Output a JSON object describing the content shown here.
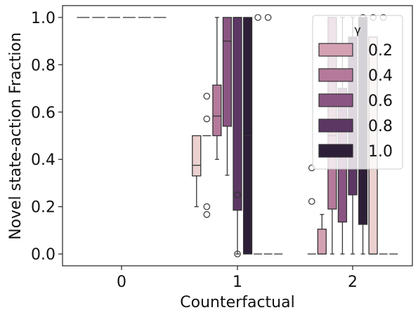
{
  "chart_data": {
    "type": "boxplot",
    "xlabel": "Counterfactual",
    "ylabel": "Novel state-action Fraction",
    "ylim": [
      -0.05,
      1.05
    ],
    "yticks": [
      "0.0",
      "0.2",
      "0.4",
      "0.6",
      "0.8",
      "1.0"
    ],
    "categories": [
      "0",
      "1",
      "2"
    ],
    "legend": {
      "title": "γ",
      "placement": "top-right",
      "entries": [
        "0.2",
        "0.4",
        "0.6",
        "0.8",
        "1.0"
      ]
    },
    "hue_colors": [
      "#ebd1cf",
      "#d4a1b3",
      "#b57a9b",
      "#8a5583",
      "#5c3764",
      "#2e1f38"
    ],
    "groups": [
      {
        "category": "0",
        "boxes": [
          {
            "q1": 1,
            "median": 1,
            "q3": 1,
            "whislo": 1,
            "whishi": 1,
            "fliers": []
          },
          {
            "q1": 1,
            "median": 1,
            "q3": 1,
            "whislo": 1,
            "whishi": 1,
            "fliers": []
          },
          {
            "q1": 1,
            "median": 1,
            "q3": 1,
            "whislo": 1,
            "whishi": 1,
            "fliers": []
          },
          {
            "q1": 1,
            "median": 1,
            "q3": 1,
            "whislo": 1,
            "whishi": 1,
            "fliers": []
          },
          {
            "q1": 1,
            "median": 1,
            "q3": 1,
            "whislo": 1,
            "whishi": 1,
            "fliers": []
          },
          {
            "q1": 1,
            "median": 1,
            "q3": 1,
            "whislo": 1,
            "whishi": 1,
            "fliers": []
          }
        ]
      },
      {
        "category": "1",
        "boxes": [
          {
            "q1": 0.33,
            "median": 0.375,
            "q3": 0.5,
            "whislo": 0.2,
            "whishi": 0.5,
            "fliers": []
          },
          {
            "q1": 0.5,
            "median": 0.5,
            "q3": 0.5,
            "whislo": 0.5,
            "whishi": 0.5,
            "fliers": [
              0.667,
              0.571,
              0.2,
              0.167
            ]
          },
          {
            "q1": 0.5,
            "median": 0.583,
            "q3": 0.714,
            "whislo": 0.4,
            "whishi": 1.0,
            "fliers": []
          },
          {
            "q1": 0.54,
            "median": 0.9,
            "q3": 1.0,
            "whislo": 0.333,
            "whishi": 1.0,
            "fliers": []
          },
          {
            "q1": 0.185,
            "median": 1.0,
            "q3": 1.0,
            "whislo": 0.0,
            "whishi": 1.0,
            "fliers": [
              0.25,
              0.0
            ]
          },
          {
            "q1": 0.0,
            "median": 0.5,
            "q3": 1.0,
            "whislo": 0.0,
            "whishi": 1.0,
            "fliers": []
          },
          {
            "q1": 0,
            "median": 0,
            "q3": 0,
            "whislo": 0,
            "whishi": 0,
            "fliers": [
              1.0
            ]
          },
          {
            "q1": 0,
            "median": 0,
            "q3": 0,
            "whislo": 0,
            "whishi": 0,
            "fliers": [
              1.0
            ]
          },
          {
            "q1": 0,
            "median": 0,
            "q3": 0,
            "whislo": 0,
            "whishi": 0,
            "fliers": []
          }
        ]
      },
      {
        "category": "2",
        "boxes": [
          {
            "q1": 0,
            "median": 0,
            "q3": 0,
            "whislo": 0,
            "whishi": 0,
            "fliers": [
              0.364,
              0.222
            ]
          },
          {
            "q1": 0.0,
            "median": 0.0,
            "q3": 0.105,
            "whislo": 0.0,
            "whishi": 0.167,
            "fliers": []
          },
          {
            "q1": 0.19,
            "median": 0.5,
            "q3": 1.0,
            "whislo": 0.0,
            "whishi": 1.0,
            "fliers": []
          },
          {
            "q1": 0.135,
            "median": 0.667,
            "q3": 0.7,
            "whislo": 0.0,
            "whishi": 1.0,
            "fliers": []
          },
          {
            "q1": 0.25,
            "median": 0.75,
            "q3": 0.917,
            "whislo": 0.0,
            "whishi": 1.0,
            "fliers": []
          },
          {
            "q1": 0.125,
            "median": 0.6,
            "q3": 1.0,
            "whislo": 0.0,
            "whishi": 1.0,
            "fliers": [
              1.0
            ]
          },
          {
            "q1": 0.0,
            "median": 0.0,
            "q3": 0.917,
            "whislo": 0.0,
            "whishi": 0.917,
            "fliers": [
              1.0
            ]
          },
          {
            "q1": 0,
            "median": 0,
            "q3": 0,
            "whislo": 0,
            "whishi": 0,
            "fliers": [
              1.0
            ]
          },
          {
            "q1": 0,
            "median": 0,
            "q3": 0,
            "whislo": 0,
            "whishi": 0,
            "fliers": []
          }
        ]
      }
    ]
  }
}
